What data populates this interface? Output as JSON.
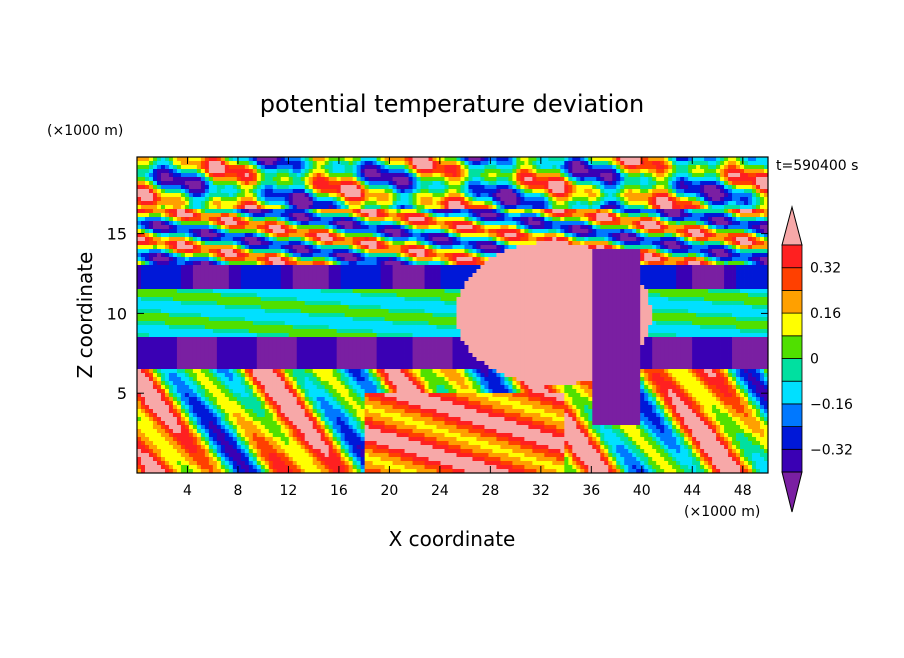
{
  "chart_data": {
    "type": "heatmap",
    "title": "potential temperature deviation",
    "xlabel": "X coordinate",
    "ylabel": "Z coordinate",
    "x_unit": "(×1000 m)",
    "y_unit": "(×1000 m)",
    "time_label": "t=590400 s",
    "xlim": [
      0,
      50
    ],
    "ylim": [
      0,
      19.8
    ],
    "x_ticks": [
      4,
      8,
      12,
      16,
      20,
      24,
      28,
      32,
      36,
      40,
      44,
      48
    ],
    "y_ticks": [
      5,
      10,
      15
    ],
    "colorbar": {
      "levels": [
        -0.4,
        -0.32,
        -0.24,
        -0.16,
        -0.08,
        0,
        0.08,
        0.16,
        0.24,
        0.32,
        0.4
      ],
      "tick_labels": [
        "0.32",
        "0.16",
        "0",
        "−0.16",
        "−0.32"
      ],
      "tick_values": [
        0.32,
        0.16,
        0,
        -0.16,
        -0.32
      ],
      "colors": [
        "#7a1fa2",
        "#3a00b4",
        "#0018d8",
        "#0078ff",
        "#00e0ff",
        "#00e0a0",
        "#50e000",
        "#ffff00",
        "#ffa000",
        "#ff4000",
        "#ff2020",
        "#f7a8a8"
      ]
    },
    "grid": false
  }
}
